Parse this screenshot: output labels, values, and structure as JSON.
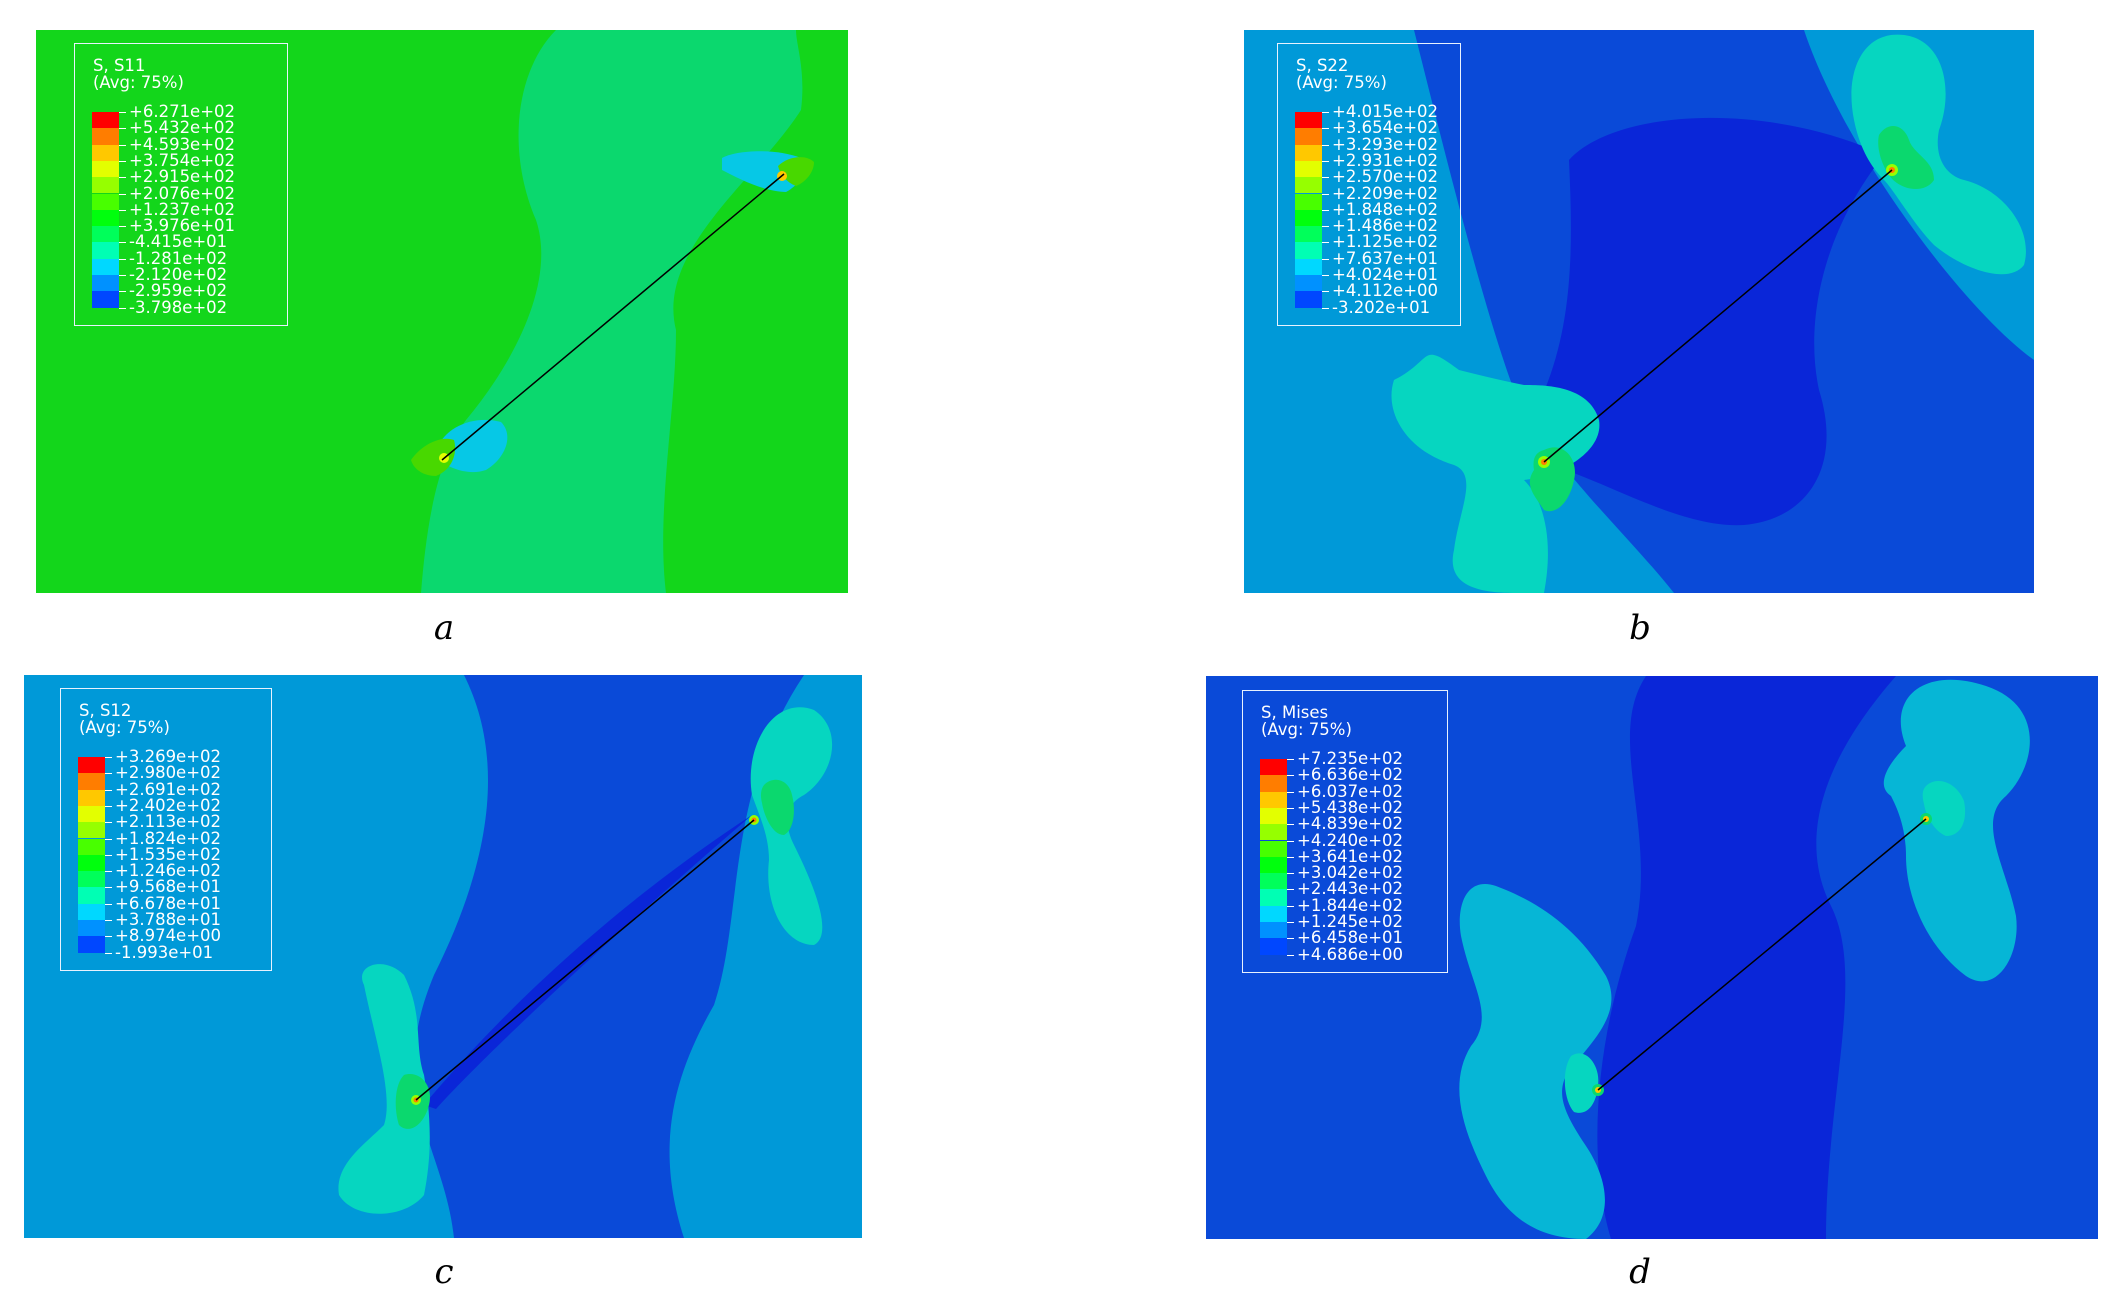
{
  "colors": {
    "field_green": "#13d61b",
    "field_mint": "#0bd86e",
    "field_cyan": "#0099d8",
    "field_blue": "#0a4ad8",
    "field_darkblue": "#0a26d8",
    "lobe_teal": "#06d6c0",
    "crack_line": "#000000"
  },
  "contour_scale": [
    "#0000ff",
    "#0047ff",
    "#0091ff",
    "#00d8ff",
    "#00ffb4",
    "#00ff5a",
    "#00ff0d",
    "#48ff00",
    "#96ff00",
    "#e3ff00",
    "#ffc800",
    "#ff7d00",
    "#ff0000"
  ],
  "panels": [
    {
      "id": "a",
      "caption": "a",
      "legend_title": "S, S11",
      "legend_sub": "(Avg: 75%)",
      "values": [
        "+6.271e+02",
        "+5.432e+02",
        "+4.593e+02",
        "+3.754e+02",
        "+2.915e+02",
        "+2.076e+02",
        "+1.237e+02",
        "+3.976e+01",
        "-4.415e+01",
        "-1.281e+02",
        "-2.120e+02",
        "-2.959e+02",
        "-3.798e+02"
      ]
    },
    {
      "id": "b",
      "caption": "b",
      "legend_title": "S, S22",
      "legend_sub": "(Avg: 75%)",
      "values": [
        "+4.015e+02",
        "+3.654e+02",
        "+3.293e+02",
        "+2.931e+02",
        "+2.570e+02",
        "+2.209e+02",
        "+1.848e+02",
        "+1.486e+02",
        "+1.125e+02",
        "+7.637e+01",
        "+4.024e+01",
        "+4.112e+00",
        "-3.202e+01"
      ]
    },
    {
      "id": "c",
      "caption": "c",
      "legend_title": "S, S12",
      "legend_sub": "(Avg: 75%)",
      "values": [
        "+3.269e+02",
        "+2.980e+02",
        "+2.691e+02",
        "+2.402e+02",
        "+2.113e+02",
        "+1.824e+02",
        "+1.535e+02",
        "+1.246e+02",
        "+9.568e+01",
        "+6.678e+01",
        "+3.788e+01",
        "+8.974e+00",
        "-1.993e+01"
      ]
    },
    {
      "id": "d",
      "caption": "d",
      "legend_title": "S, Mises",
      "legend_sub": "(Avg: 75%)",
      "values": [
        "+7.235e+02",
        "+6.636e+02",
        "+6.037e+02",
        "+5.438e+02",
        "+4.839e+02",
        "+4.240e+02",
        "+3.641e+02",
        "+3.042e+02",
        "+2.443e+02",
        "+1.844e+02",
        "+1.245e+02",
        "+6.458e+01",
        "+4.686e+00"
      ]
    }
  ]
}
